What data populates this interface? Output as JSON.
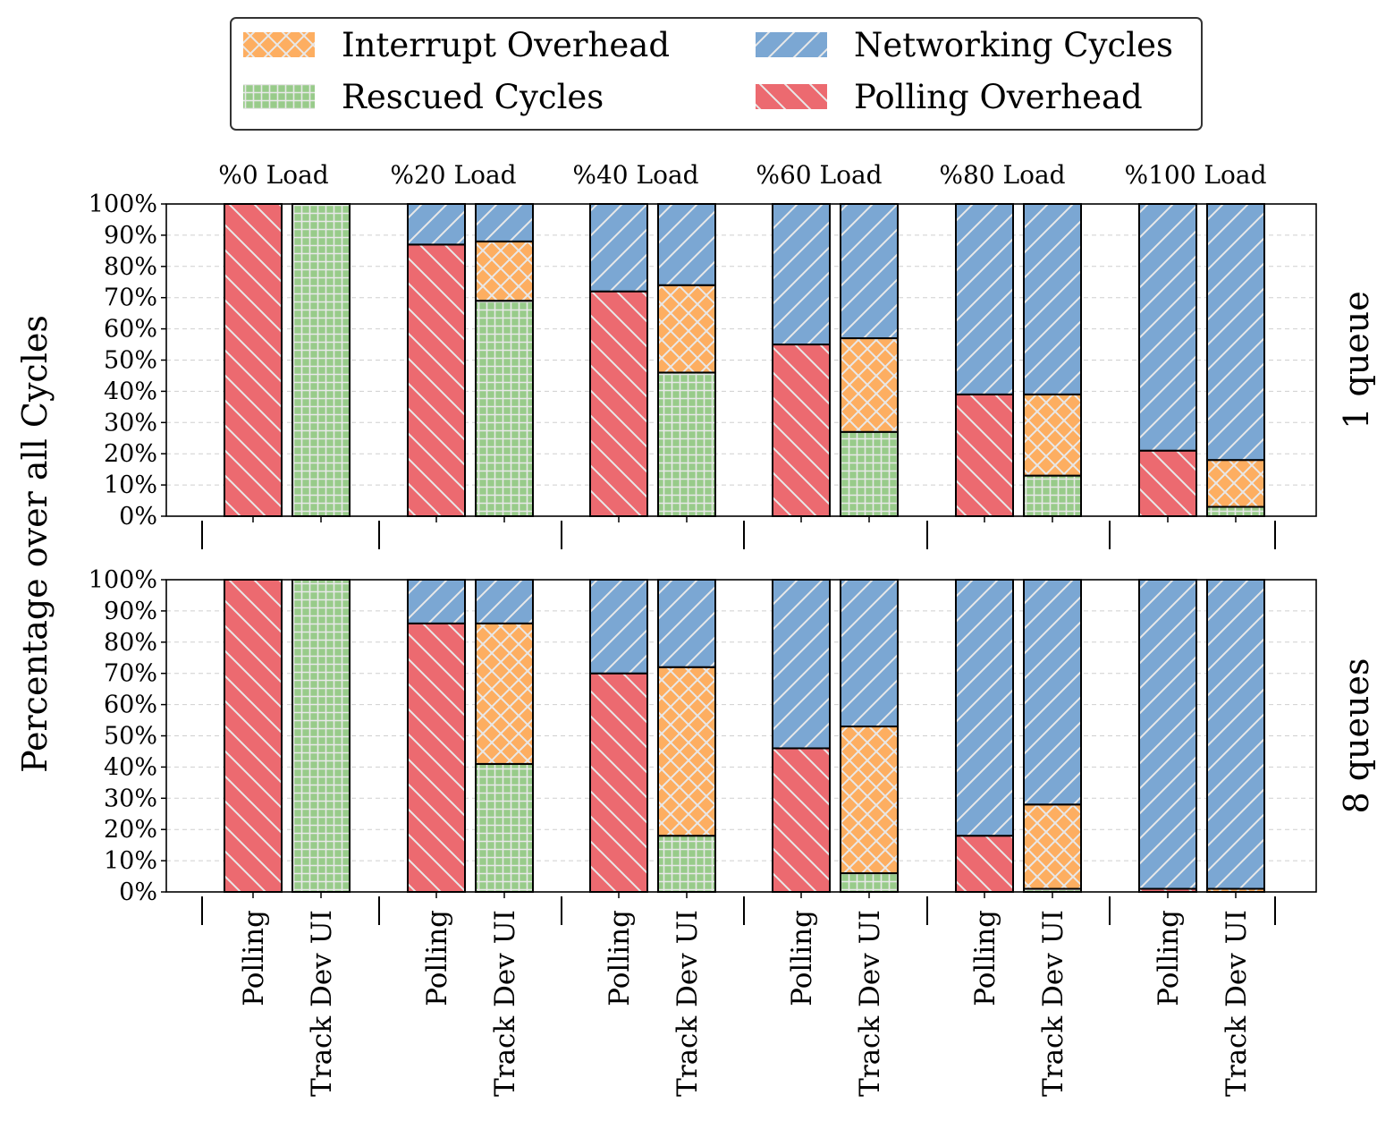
{
  "chart_data": {
    "type": "bar",
    "stacked": true,
    "ylabel": "Percentage over all Cycles",
    "ylim": [
      0,
      100
    ],
    "yticks": [
      "0%",
      "10%",
      "20%",
      "30%",
      "40%",
      "50%",
      "60%",
      "70%",
      "80%",
      "90%",
      "100%"
    ],
    "grid": "horizontal dashed",
    "legend": {
      "placement": "top-center",
      "entries": [
        {
          "name": "Interrupt Overhead",
          "color": "#fdae61",
          "hatch": "crosshatch"
        },
        {
          "name": "Networking Cycles",
          "color": "#7ba7d3",
          "hatch": "forward-diagonal"
        },
        {
          "name": "Rescued Cycles",
          "color": "#98cb8a",
          "hatch": "grid"
        },
        {
          "name": "Polling Overhead",
          "color": "#ec6a70",
          "hatch": "back-diagonal"
        }
      ]
    },
    "groups": [
      "%0 Load",
      "%20 Load",
      "%40 Load",
      "%60 Load",
      "%80 Load",
      "%100 Load"
    ],
    "categories": [
      "Polling",
      "Track Dev UI"
    ],
    "panels": [
      {
        "name": "1 queue",
        "bars": [
          {
            "group": "%0 Load",
            "category": "Polling",
            "segments": {
              "Polling Overhead": 100
            }
          },
          {
            "group": "%0 Load",
            "category": "Track Dev UI",
            "segments": {
              "Rescued Cycles": 100
            }
          },
          {
            "group": "%20 Load",
            "category": "Polling",
            "segments": {
              "Polling Overhead": 87,
              "Networking Cycles": 13
            }
          },
          {
            "group": "%20 Load",
            "category": "Track Dev UI",
            "segments": {
              "Rescued Cycles": 69,
              "Interrupt Overhead": 19,
              "Networking Cycles": 12
            }
          },
          {
            "group": "%40 Load",
            "category": "Polling",
            "segments": {
              "Polling Overhead": 72,
              "Networking Cycles": 28
            }
          },
          {
            "group": "%40 Load",
            "category": "Track Dev UI",
            "segments": {
              "Rescued Cycles": 46,
              "Interrupt Overhead": 28,
              "Networking Cycles": 26
            }
          },
          {
            "group": "%60 Load",
            "category": "Polling",
            "segments": {
              "Polling Overhead": 55,
              "Networking Cycles": 45
            }
          },
          {
            "group": "%60 Load",
            "category": "Track Dev UI",
            "segments": {
              "Rescued Cycles": 27,
              "Interrupt Overhead": 30,
              "Networking Cycles": 43
            }
          },
          {
            "group": "%80 Load",
            "category": "Polling",
            "segments": {
              "Polling Overhead": 39,
              "Networking Cycles": 61
            }
          },
          {
            "group": "%80 Load",
            "category": "Track Dev UI",
            "segments": {
              "Rescued Cycles": 13,
              "Interrupt Overhead": 26,
              "Networking Cycles": 61
            }
          },
          {
            "group": "%100 Load",
            "category": "Polling",
            "segments": {
              "Polling Overhead": 21,
              "Networking Cycles": 79
            }
          },
          {
            "group": "%100 Load",
            "category": "Track Dev UI",
            "segments": {
              "Rescued Cycles": 3,
              "Interrupt Overhead": 15,
              "Networking Cycles": 82
            }
          }
        ]
      },
      {
        "name": "8 queues",
        "bars": [
          {
            "group": "%0 Load",
            "category": "Polling",
            "segments": {
              "Polling Overhead": 100
            }
          },
          {
            "group": "%0 Load",
            "category": "Track Dev UI",
            "segments": {
              "Rescued Cycles": 100
            }
          },
          {
            "group": "%20 Load",
            "category": "Polling",
            "segments": {
              "Polling Overhead": 86,
              "Networking Cycles": 14
            }
          },
          {
            "group": "%20 Load",
            "category": "Track Dev UI",
            "segments": {
              "Rescued Cycles": 41,
              "Interrupt Overhead": 45,
              "Networking Cycles": 14
            }
          },
          {
            "group": "%40 Load",
            "category": "Polling",
            "segments": {
              "Polling Overhead": 70,
              "Networking Cycles": 30
            }
          },
          {
            "group": "%40 Load",
            "category": "Track Dev UI",
            "segments": {
              "Rescued Cycles": 18,
              "Interrupt Overhead": 54,
              "Networking Cycles": 28
            }
          },
          {
            "group": "%60 Load",
            "category": "Polling",
            "segments": {
              "Polling Overhead": 46,
              "Networking Cycles": 54
            }
          },
          {
            "group": "%60 Load",
            "category": "Track Dev UI",
            "segments": {
              "Rescued Cycles": 6,
              "Interrupt Overhead": 47,
              "Networking Cycles": 47
            }
          },
          {
            "group": "%80 Load",
            "category": "Polling",
            "segments": {
              "Polling Overhead": 18,
              "Networking Cycles": 82
            }
          },
          {
            "group": "%80 Load",
            "category": "Track Dev UI",
            "segments": {
              "Rescued Cycles": 1,
              "Interrupt Overhead": 27,
              "Networking Cycles": 72
            }
          },
          {
            "group": "%100 Load",
            "category": "Polling",
            "segments": {
              "Polling Overhead": 1,
              "Networking Cycles": 99
            }
          },
          {
            "group": "%100 Load",
            "category": "Track Dev UI",
            "segments": {
              "Interrupt Overhead": 1,
              "Networking Cycles": 99
            }
          }
        ]
      }
    ]
  }
}
